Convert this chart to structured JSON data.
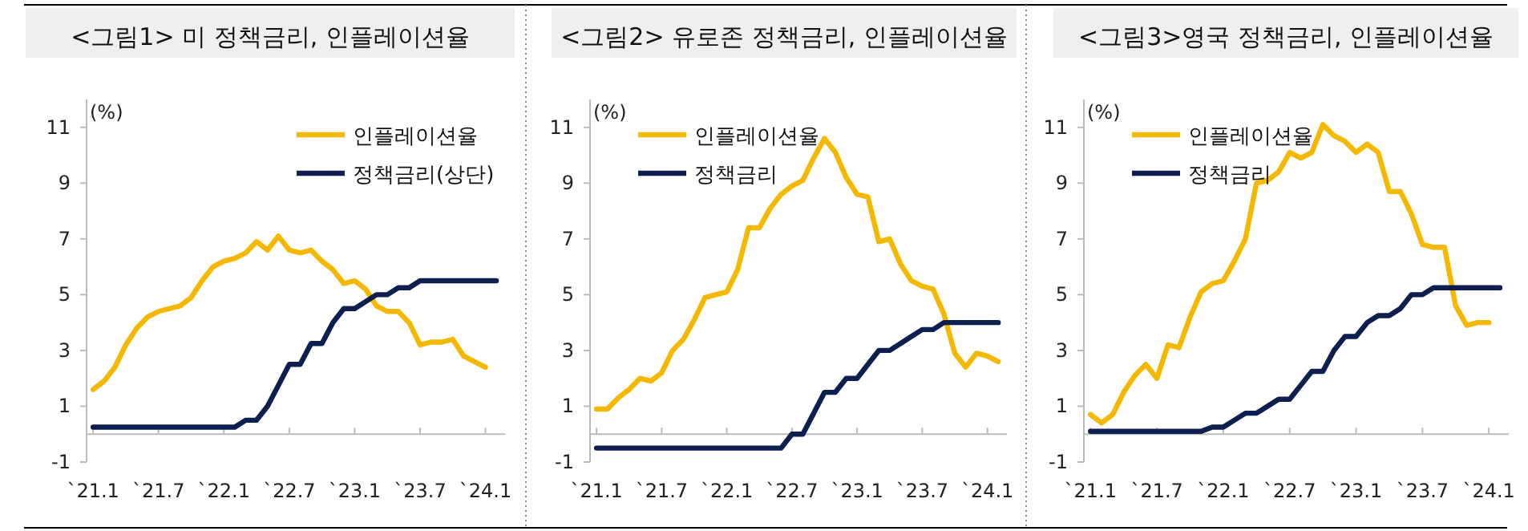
{
  "chart_data": [
    {
      "type": "line",
      "title": "<그림1> 미 정책금리, 인플레이션율",
      "ylabel": "(%)",
      "categories": [
        "`21.1",
        null,
        null,
        null,
        null,
        null,
        "`21.7",
        null,
        null,
        null,
        null,
        null,
        "`22.1",
        null,
        null,
        null,
        null,
        null,
        "`22.7",
        null,
        null,
        null,
        null,
        null,
        "`23.1",
        null,
        null,
        null,
        null,
        null,
        "`23.7",
        null,
        null,
        null,
        null,
        null,
        "`24.1",
        null
      ],
      "series": [
        {
          "name": "인플레이션율",
          "color": "#f5b800",
          "values": [
            1.6,
            1.9,
            2.4,
            3.2,
            3.8,
            4.2,
            4.4,
            4.5,
            4.6,
            4.9,
            5.5,
            6.0,
            6.2,
            6.3,
            6.5,
            6.9,
            6.6,
            7.1,
            6.6,
            6.5,
            6.6,
            6.2,
            5.9,
            5.4,
            5.5,
            5.2,
            4.6,
            4.4,
            4.4,
            4.0,
            3.2,
            3.3,
            3.3,
            3.4,
            2.8,
            2.6,
            2.4,
            null
          ]
        },
        {
          "name": "정책금리(상단)",
          "color": "#0d1f4f",
          "values": [
            0.25,
            0.25,
            0.25,
            0.25,
            0.25,
            0.25,
            0.25,
            0.25,
            0.25,
            0.25,
            0.25,
            0.25,
            0.25,
            0.25,
            0.5,
            0.5,
            1.0,
            1.75,
            2.5,
            2.5,
            3.25,
            3.25,
            4.0,
            4.5,
            4.5,
            4.75,
            5.0,
            5.0,
            5.25,
            5.25,
            5.5,
            5.5,
            5.5,
            5.5,
            5.5,
            5.5,
            5.5,
            5.5
          ]
        }
      ],
      "ylim": [
        -1,
        12
      ],
      "yticks": [
        -1,
        1,
        3,
        5,
        7,
        9,
        11
      ],
      "legend": "top right",
      "grid": false,
      "marker": "none",
      "line_style": "solid"
    },
    {
      "type": "line",
      "title": "<그림2> 유로존 정책금리, 인플레이션율",
      "ylabel": "(%)",
      "categories": [
        "`21.1",
        null,
        null,
        null,
        null,
        null,
        "`21.7",
        null,
        null,
        null,
        null,
        null,
        "`22.1",
        null,
        null,
        null,
        null,
        null,
        "`22.7",
        null,
        null,
        null,
        null,
        null,
        "`23.1",
        null,
        null,
        null,
        null,
        null,
        "`23.7",
        null,
        null,
        null,
        null,
        null,
        "`24.1",
        null
      ],
      "series": [
        {
          "name": "인플레이션율",
          "color": "#f5b800",
          "values": [
            0.9,
            0.9,
            1.3,
            1.6,
            2.0,
            1.9,
            2.2,
            3.0,
            3.4,
            4.1,
            4.9,
            5.0,
            5.1,
            5.9,
            7.4,
            7.4,
            8.1,
            8.6,
            8.9,
            9.1,
            9.9,
            10.6,
            10.1,
            9.2,
            8.6,
            8.5,
            6.9,
            7.0,
            6.1,
            5.5,
            5.3,
            5.2,
            4.3,
            2.9,
            2.4,
            2.9,
            2.8,
            2.6
          ]
        },
        {
          "name": "정책금리",
          "color": "#0d1f4f",
          "values": [
            -0.5,
            -0.5,
            -0.5,
            -0.5,
            -0.5,
            -0.5,
            -0.5,
            -0.5,
            -0.5,
            -0.5,
            -0.5,
            -0.5,
            -0.5,
            -0.5,
            -0.5,
            -0.5,
            -0.5,
            -0.5,
            0.0,
            0.0,
            0.75,
            1.5,
            1.5,
            2.0,
            2.0,
            2.5,
            3.0,
            3.0,
            3.25,
            3.5,
            3.75,
            3.75,
            4.0,
            4.0,
            4.0,
            4.0,
            4.0,
            4.0
          ]
        }
      ],
      "ylim": [
        -1,
        12
      ],
      "yticks": [
        -1,
        1,
        3,
        5,
        7,
        9,
        11
      ],
      "legend": "top left",
      "grid": false,
      "marker": "none",
      "line_style": "solid"
    },
    {
      "type": "line",
      "title": "<그림3>영국 정책금리, 인플레이션율",
      "ylabel": "(%)",
      "categories": [
        "`21.1",
        null,
        null,
        null,
        null,
        null,
        "`21.7",
        null,
        null,
        null,
        null,
        null,
        "`22.1",
        null,
        null,
        null,
        null,
        null,
        "`22.7",
        null,
        null,
        null,
        null,
        null,
        "`23.1",
        null,
        null,
        null,
        null,
        null,
        "`23.7",
        null,
        null,
        null,
        null,
        null,
        "`24.1",
        null
      ],
      "series": [
        {
          "name": "인플레이션율",
          "color": "#f5b800",
          "values": [
            0.7,
            0.4,
            0.7,
            1.5,
            2.1,
            2.5,
            2.0,
            3.2,
            3.1,
            4.2,
            5.1,
            5.4,
            5.5,
            6.2,
            7.0,
            9.0,
            9.1,
            9.4,
            10.1,
            9.9,
            10.1,
            11.1,
            10.7,
            10.5,
            10.1,
            10.4,
            10.1,
            8.7,
            8.7,
            7.9,
            6.8,
            6.7,
            6.7,
            4.6,
            3.9,
            4.0,
            4.0,
            null
          ]
        },
        {
          "name": "정책금리",
          "color": "#0d1f4f",
          "values": [
            0.1,
            0.1,
            0.1,
            0.1,
            0.1,
            0.1,
            0.1,
            0.1,
            0.1,
            0.1,
            0.1,
            0.25,
            0.25,
            0.5,
            0.75,
            0.75,
            1.0,
            1.25,
            1.25,
            1.75,
            2.25,
            2.25,
            3.0,
            3.5,
            3.5,
            4.0,
            4.25,
            4.25,
            4.5,
            5.0,
            5.0,
            5.25,
            5.25,
            5.25,
            5.25,
            5.25,
            5.25,
            5.25
          ]
        }
      ],
      "ylim": [
        -1,
        12
      ],
      "yticks": [
        -1,
        1,
        3,
        5,
        7,
        9,
        11
      ],
      "legend": "top left",
      "grid": false,
      "marker": "none",
      "line_style": "solid"
    }
  ]
}
